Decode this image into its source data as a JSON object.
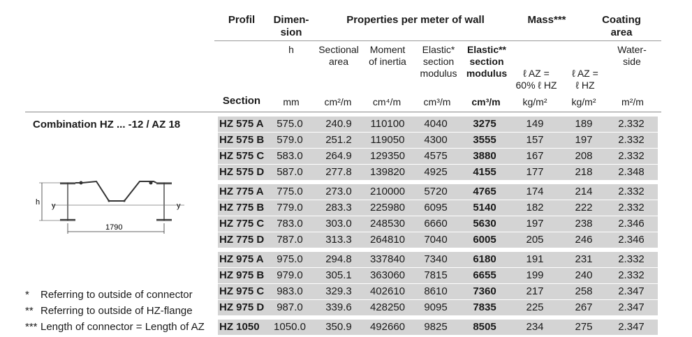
{
  "headers": {
    "profil": "Profil",
    "dimension": "Dimen-\nsion",
    "properties": "Properties per meter of wall",
    "mass": "Mass***",
    "coating": "Coating\narea"
  },
  "subheaders": {
    "h": "h",
    "sectional_area": "Sectional\narea",
    "moment": "Moment\nof inertia",
    "elastic": "Elastic*\nsection\nmodulus",
    "elastic2": "Elastic**\nsection\nmodulus",
    "mass1": "ℓ AZ =\n60% ℓ HZ",
    "mass2": "ℓ AZ =\nℓ HZ",
    "water": "Water-\nside"
  },
  "units": {
    "section": "Section",
    "mm": "mm",
    "area": "cm²/m",
    "inertia": "cm⁴/m",
    "mod1": "cm³/m",
    "mod2": "cm³/m",
    "kg1": "kg/m²",
    "kg2": "kg/m²",
    "coat": "m²/m"
  },
  "combination_title": "Combination HZ ... -12 / AZ 18",
  "diagram": {
    "h_label": "h",
    "y_left": "y",
    "y_right": "y",
    "dim": "1790"
  },
  "rows": [
    [
      "HZ 575 A",
      "575.0",
      "240.9",
      "110100",
      "4040",
      "3275",
      "149",
      "189",
      "2.332"
    ],
    [
      "HZ 575 B",
      "579.0",
      "251.2",
      "119050",
      "4300",
      "3555",
      "157",
      "197",
      "2.332"
    ],
    [
      "HZ 575 C",
      "583.0",
      "264.9",
      "129350",
      "4575",
      "3880",
      "167",
      "208",
      "2.332"
    ],
    [
      "HZ 575 D",
      "587.0",
      "277.8",
      "139820",
      "4925",
      "4155",
      "177",
      "218",
      "2.348"
    ],
    [
      "HZ 775 A",
      "775.0",
      "273.0",
      "210000",
      "5720",
      "4765",
      "174",
      "214",
      "2.332"
    ],
    [
      "HZ 775 B",
      "779.0",
      "283.3",
      "225980",
      "6095",
      "5140",
      "182",
      "222",
      "2.332"
    ],
    [
      "HZ 775 C",
      "783.0",
      "303.0",
      "248530",
      "6660",
      "5630",
      "197",
      "238",
      "2.346"
    ],
    [
      "HZ 775 D",
      "787.0",
      "313.3",
      "264810",
      "7040",
      "6005",
      "205",
      "246",
      "2.346"
    ],
    [
      "HZ 975 A",
      "975.0",
      "294.8",
      "337840",
      "7340",
      "6180",
      "191",
      "231",
      "2.332"
    ],
    [
      "HZ 975 B",
      "979.0",
      "305.1",
      "363060",
      "7815",
      "6655",
      "199",
      "240",
      "2.332"
    ],
    [
      "HZ 975 C",
      "983.0",
      "329.3",
      "402610",
      "8610",
      "7360",
      "217",
      "258",
      "2.347"
    ],
    [
      "HZ 975 D",
      "987.0",
      "339.6",
      "428250",
      "9095",
      "7835",
      "225",
      "267",
      "2.347"
    ],
    [
      "HZ 1050",
      "1050.0",
      "350.9",
      "492660",
      "9825",
      "8505",
      "234",
      "275",
      "2.347"
    ]
  ],
  "notes": [
    {
      "mark": "*",
      "text": "Referring to outside of connector"
    },
    {
      "mark": "**",
      "text": "Referring to outside of HZ-flange"
    },
    {
      "mark": "***",
      "text": "Length of connector = Length of AZ"
    }
  ]
}
